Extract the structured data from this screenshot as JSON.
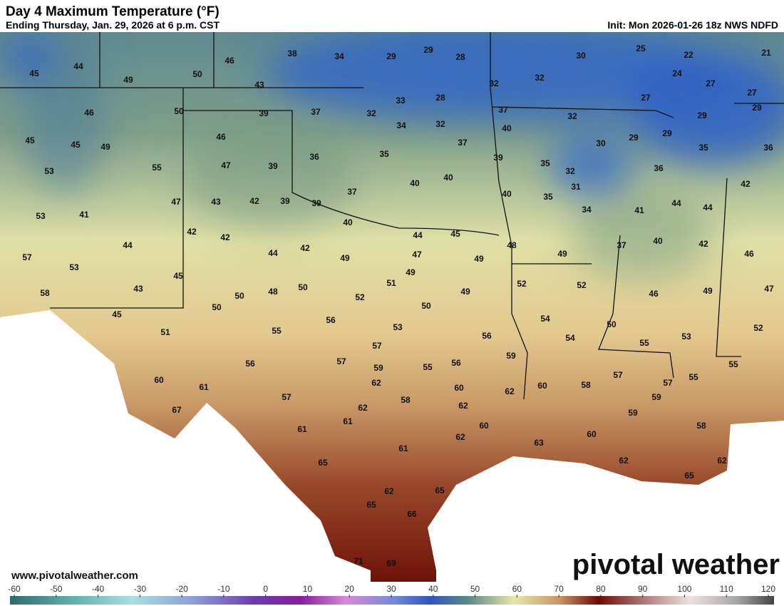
{
  "header": {
    "title": "Day 4 Maximum Temperature (°F)",
    "subtitle": "Ending Thursday, Jan. 29, 2026 at 6 p.m. CST",
    "init": "Init: Mon 2026-01-26 18z NWS NDFD"
  },
  "footer": {
    "website": "www.pivotalweather.com",
    "logo": "pivotal weather"
  },
  "map": {
    "labels": [
      45,
      44,
      49,
      50,
      46,
      38,
      34,
      29,
      29,
      28,
      30,
      25,
      22,
      21,
      43,
      32,
      32,
      24,
      27,
      27,
      46,
      50,
      39,
      37,
      33,
      28,
      32,
      37,
      32,
      29,
      29,
      27,
      45,
      45,
      49,
      46,
      34,
      32,
      40,
      37,
      29,
      29,
      30,
      35,
      36,
      53,
      55,
      47,
      39,
      36,
      35,
      39,
      35,
      32,
      36,
      42,
      53,
      41,
      47,
      43,
      42,
      39,
      39,
      37,
      40,
      40,
      40,
      31,
      35,
      34,
      41,
      44,
      44,
      42,
      42,
      44,
      40,
      44,
      45,
      48,
      49,
      37,
      40,
      42,
      46,
      57,
      53,
      44,
      42,
      49,
      47,
      49,
      45,
      58,
      43,
      50,
      48,
      50,
      49,
      51,
      52,
      49,
      52,
      52,
      46,
      49,
      47,
      45,
      50,
      50,
      56,
      54,
      50,
      51,
      55,
      53,
      56,
      54,
      53,
      52,
      55,
      57,
      59,
      56,
      57,
      59,
      55,
      56,
      57,
      55,
      55,
      57,
      60,
      61,
      62,
      60,
      62,
      60,
      58,
      59,
      57,
      58,
      62,
      62,
      67,
      61,
      59,
      60,
      58,
      61,
      62,
      60,
      63,
      61,
      62,
      62,
      65,
      65,
      62,
      65,
      65,
      66,
      71,
      69
    ]
  },
  "colorbar": {
    "ticks": [
      -60,
      -50,
      -40,
      -30,
      -20,
      -10,
      0,
      10,
      20,
      30,
      40,
      50,
      60,
      70,
      80,
      90,
      100,
      110,
      120
    ]
  }
}
